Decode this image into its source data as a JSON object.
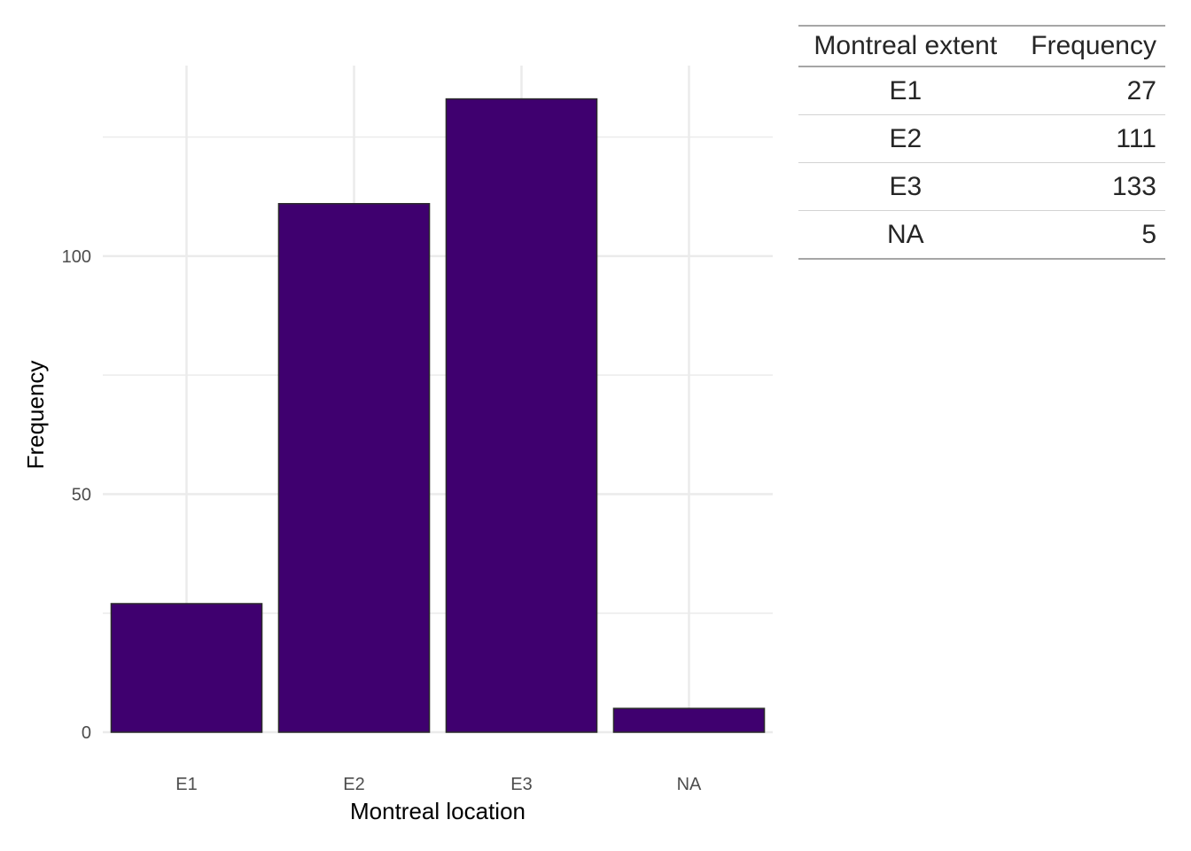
{
  "chart_data": {
    "type": "bar",
    "categories": [
      "E1",
      "E2",
      "E3",
      "NA"
    ],
    "values": [
      27,
      111,
      133,
      5
    ],
    "xlabel": "Montreal location",
    "ylabel": "Frequency",
    "ylim": [
      0,
      140
    ],
    "yticks": [
      0,
      50,
      100
    ],
    "grid": true,
    "bar_color": "#3f006f",
    "bar_outline": "#2b2b2b",
    "grid_color": "#ebebeb"
  },
  "table": {
    "headers": [
      "Montreal extent",
      "Frequency"
    ],
    "rows": [
      [
        "E1",
        "27"
      ],
      [
        "E2",
        "111"
      ],
      [
        "E3",
        "133"
      ],
      [
        "NA",
        "5"
      ]
    ]
  }
}
